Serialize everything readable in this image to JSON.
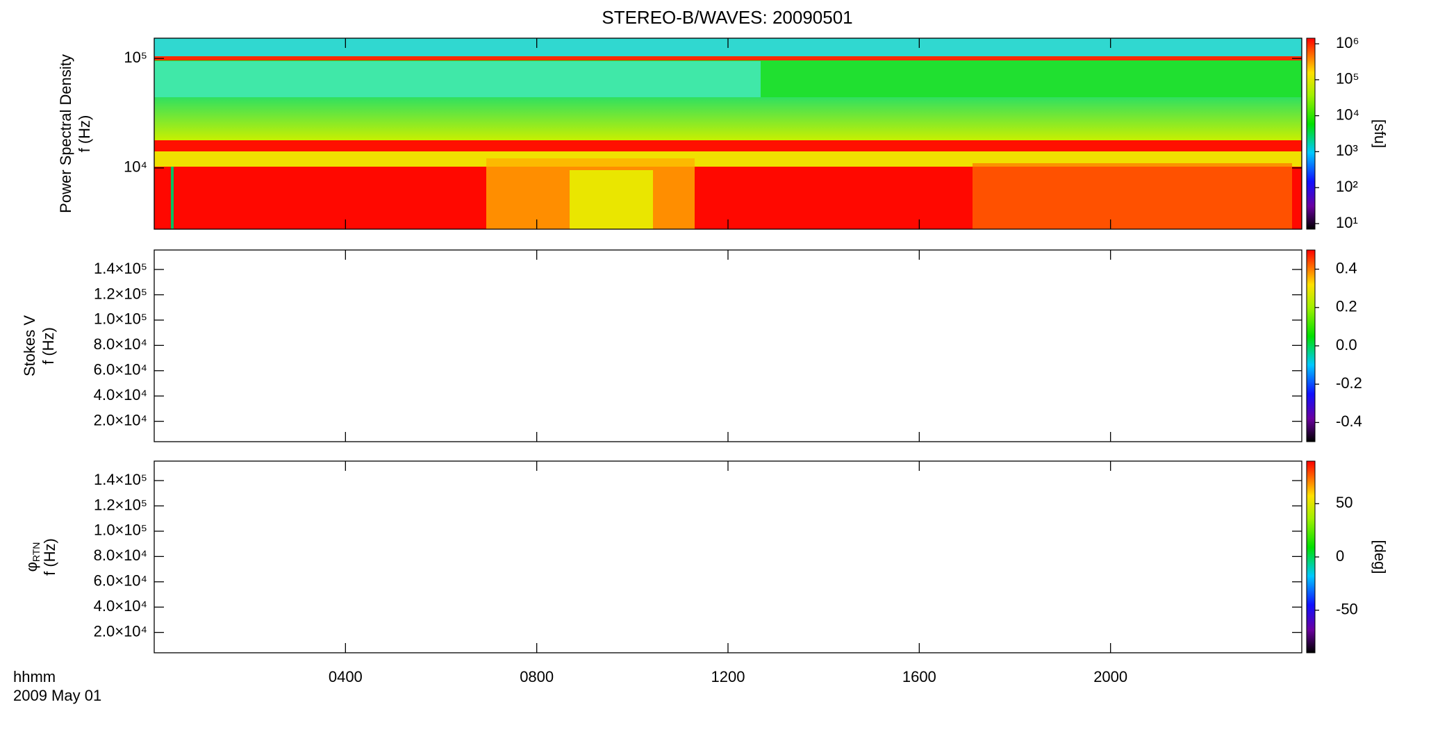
{
  "title": "STEREO-B/WAVES: 20090501",
  "x_axis": {
    "label": "hhmm",
    "date": "2009 May 01",
    "xlim": [
      0,
      24
    ],
    "xticks": [
      {
        "value": 4,
        "label": "0400"
      },
      {
        "value": 8,
        "label": "0800"
      },
      {
        "value": 12,
        "label": "1200"
      },
      {
        "value": 16,
        "label": "1600"
      },
      {
        "value": 20,
        "label": "2000"
      }
    ]
  },
  "chart_data": [
    {
      "type": "heatmap",
      "ylabel_lines": [
        "Power Spectral Density",
        "f (Hz)"
      ],
      "ylog": true,
      "ylim": [
        2760,
        153000
      ],
      "yticks": [
        {
          "value": 10000,
          "label": "10⁴"
        },
        {
          "value": 100000,
          "label": "10⁵"
        }
      ],
      "colorbar": {
        "label": "[sfu]",
        "log": true,
        "lim": [
          7,
          1430000
        ],
        "ticks": [
          {
            "value": 10,
            "label": "10¹"
          },
          {
            "value": 100,
            "label": "10²"
          },
          {
            "value": 1000,
            "label": "10³"
          },
          {
            "value": 10000,
            "label": "10⁴"
          },
          {
            "value": 100000,
            "label": "10⁵"
          },
          {
            "value": 1000000,
            "label": "10⁶"
          }
        ]
      }
    },
    {
      "type": "heatmap",
      "ylabel_lines": [
        "Stokes V",
        "f (Hz)"
      ],
      "ylog": false,
      "ylim": [
        3900,
        155400
      ],
      "yticks": [
        {
          "value": 20000,
          "label": "2.0×10⁴"
        },
        {
          "value": 40000,
          "label": "4.0×10⁴"
        },
        {
          "value": 60000,
          "label": "6.0×10⁴"
        },
        {
          "value": 80000,
          "label": "8.0×10⁴"
        },
        {
          "value": 100000,
          "label": "1.0×10⁵"
        },
        {
          "value": 120000,
          "label": "1.2×10⁵"
        },
        {
          "value": 140000,
          "label": "1.4×10⁵"
        }
      ],
      "colorbar": {
        "log": false,
        "lim": [
          -0.5,
          0.5
        ],
        "ticks": [
          -0.4,
          -0.2,
          {
            "value": 0,
            "label": "0.0"
          },
          0.2,
          0.4
        ]
      }
    },
    {
      "type": "heatmap",
      "ylabel_lines": [
        "φ",
        "f (Hz)"
      ],
      "ylabel_subscript": "RTN",
      "ylog": false,
      "ylim": [
        3900,
        155400
      ],
      "yticks": [
        {
          "value": 20000,
          "label": "2.0×10⁴"
        },
        {
          "value": 40000,
          "label": "4.0×10⁴"
        },
        {
          "value": 60000,
          "label": "6.0×10⁴"
        },
        {
          "value": 80000,
          "label": "8.0×10⁴"
        },
        {
          "value": 100000,
          "label": "1.0×10⁵"
        },
        {
          "value": 120000,
          "label": "1.2×10⁵"
        },
        {
          "value": 140000,
          "label": "1.4×10⁵"
        }
      ],
      "colorbar": {
        "label": "[deg]",
        "log": false,
        "lim": [
          -90,
          90
        ],
        "ticks": [
          -50,
          0,
          50
        ]
      }
    }
  ]
}
